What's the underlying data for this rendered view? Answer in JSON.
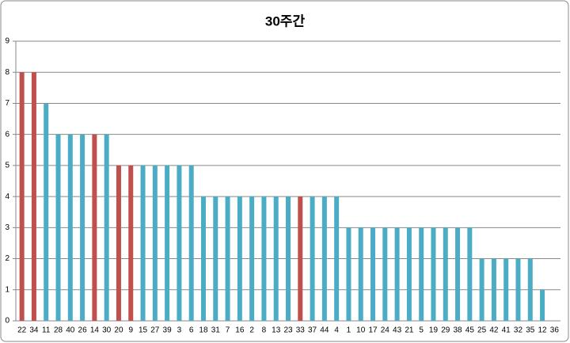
{
  "chart_data": {
    "type": "bar",
    "title": "30주간",
    "categories": [
      "22",
      "34",
      "11",
      "28",
      "40",
      "26",
      "14",
      "30",
      "20",
      "9",
      "15",
      "27",
      "39",
      "3",
      "6",
      "18",
      "31",
      "7",
      "16",
      "2",
      "8",
      "13",
      "23",
      "33",
      "37",
      "44",
      "4",
      "1",
      "10",
      "17",
      "24",
      "43",
      "21",
      "5",
      "19",
      "29",
      "38",
      "45",
      "25",
      "42",
      "41",
      "32",
      "35",
      "12",
      "36"
    ],
    "values": [
      8,
      8,
      7,
      6,
      6,
      6,
      6,
      6,
      5,
      5,
      5,
      5,
      5,
      5,
      5,
      4,
      4,
      4,
      4,
      4,
      4,
      4,
      4,
      4,
      4,
      4,
      4,
      3,
      3,
      3,
      3,
      3,
      3,
      3,
      3,
      3,
      3,
      3,
      2,
      2,
      2,
      2,
      2,
      1,
      0
    ],
    "colors": [
      "#c0504d",
      "#c0504d",
      "#4bacc6",
      "#4bacc6",
      "#4bacc6",
      "#4bacc6",
      "#c0504d",
      "#4bacc6",
      "#c0504d",
      "#c0504d",
      "#4bacc6",
      "#4bacc6",
      "#4bacc6",
      "#4bacc6",
      "#4bacc6",
      "#4bacc6",
      "#4bacc6",
      "#4bacc6",
      "#4bacc6",
      "#4bacc6",
      "#4bacc6",
      "#4bacc6",
      "#4bacc6",
      "#c0504d",
      "#4bacc6",
      "#4bacc6",
      "#4bacc6",
      "#4bacc6",
      "#4bacc6",
      "#4bacc6",
      "#4bacc6",
      "#4bacc6",
      "#4bacc6",
      "#4bacc6",
      "#4bacc6",
      "#4bacc6",
      "#4bacc6",
      "#4bacc6",
      "#4bacc6",
      "#4bacc6",
      "#4bacc6",
      "#4bacc6",
      "#4bacc6",
      "#4bacc6",
      "#4bacc6"
    ],
    "ylim": [
      0,
      9
    ],
    "yticks": [
      0,
      1,
      2,
      3,
      4,
      5,
      6,
      7,
      8,
      9
    ],
    "grid": true
  }
}
